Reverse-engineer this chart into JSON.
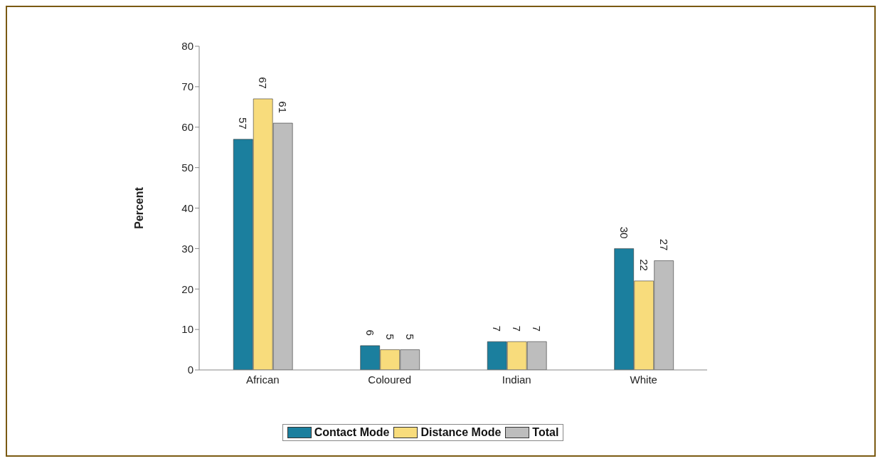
{
  "chart_data": {
    "type": "bar",
    "ylabel": "Percent",
    "categories": [
      "African",
      "Coloured",
      "Indian",
      "White"
    ],
    "series": [
      {
        "name": "Contact Mode",
        "color": "#1b7f9e",
        "values": [
          57,
          6,
          7,
          30
        ]
      },
      {
        "name": "Distance Mode",
        "color": "#f8dc7c",
        "values": [
          67,
          5,
          7,
          22
        ]
      },
      {
        "name": "Total",
        "color": "#bdbdbd",
        "values": [
          61,
          5,
          7,
          27
        ]
      }
    ],
    "ylim": [
      0,
      80
    ],
    "yticks": [
      0,
      10,
      20,
      30,
      40,
      50,
      60,
      70,
      80
    ],
    "grid": false,
    "legend": "bottom",
    "data_labels": true
  }
}
